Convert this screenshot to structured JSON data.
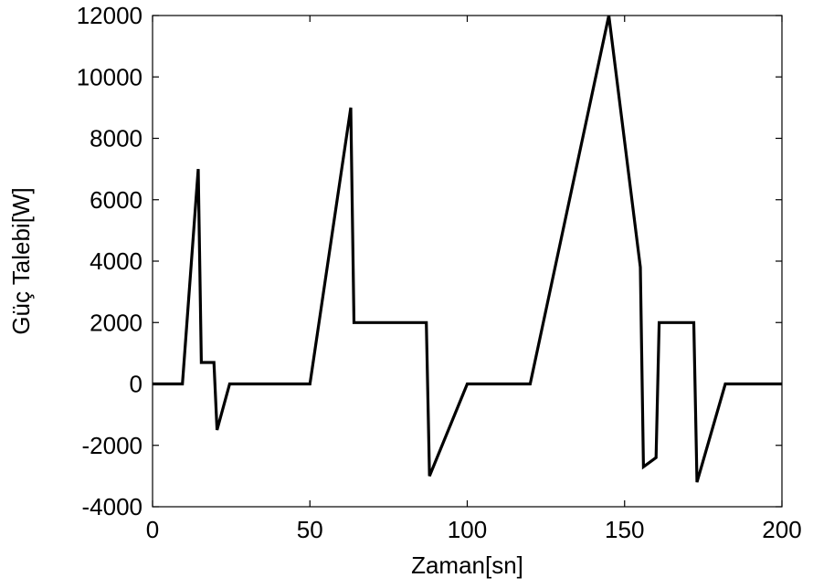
{
  "chart_data": {
    "type": "line",
    "title": "",
    "xlabel": "Zaman[sn]",
    "ylabel": "Güç Talebi[W]",
    "xlim": [
      0,
      200
    ],
    "ylim": [
      -4000,
      12000
    ],
    "x_ticks": [
      0,
      50,
      100,
      150,
      200
    ],
    "y_ticks": [
      -4000,
      -2000,
      0,
      2000,
      4000,
      6000,
      8000,
      10000,
      12000
    ],
    "x_tick_labels": [
      "0",
      "50",
      "100",
      "150",
      "200"
    ],
    "y_tick_labels": [
      "-4000",
      "-2000",
      "0",
      "2000",
      "4000",
      "6000",
      "8000",
      "10000",
      "12000"
    ],
    "grid": false,
    "line_color": "#000000",
    "series": [
      {
        "x": [
          0,
          9.5,
          14.5,
          15.5,
          19.5,
          20.5,
          24.5,
          50,
          63,
          64,
          87,
          88,
          100,
          120,
          145,
          155,
          156,
          160,
          161,
          172,
          173,
          182,
          200
        ],
        "y": [
          0,
          0,
          7000,
          700,
          700,
          -1500,
          0,
          0,
          9000,
          2000,
          2000,
          -3000,
          0,
          0,
          12000,
          3800,
          -2700,
          -2400,
          2000,
          2000,
          -3200,
          0,
          0
        ]
      }
    ]
  }
}
